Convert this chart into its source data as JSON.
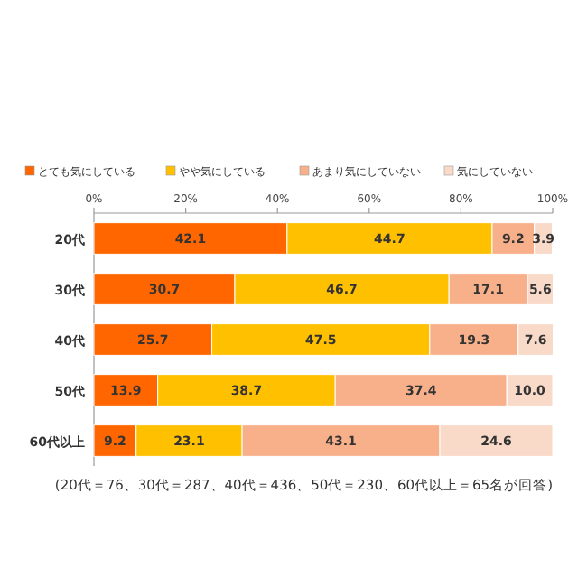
{
  "chart_data": {
    "type": "bar",
    "orientation": "horizontal",
    "stacked": true,
    "legend": "top",
    "grid": false,
    "categories": [
      "20代",
      "30代",
      "40代",
      "50代",
      "60代以上"
    ],
    "series": [
      {
        "name": "とても気にしている",
        "color": "#ff6600",
        "values": [
          42.1,
          30.7,
          25.7,
          13.9,
          9.2
        ],
        "value_labels": [
          "42.1",
          "30.7",
          "25.7",
          "13.9",
          "9.2"
        ]
      },
      {
        "name": "やや気にしている",
        "color": "#ffc000",
        "values": [
          44.7,
          46.7,
          47.5,
          38.7,
          23.1
        ],
        "value_labels": [
          "44.7",
          "46.7",
          "47.5",
          "38.7",
          "23.1"
        ]
      },
      {
        "name": "あまり気にしていない",
        "color": "#f8b08a",
        "values": [
          9.2,
          17.1,
          19.3,
          37.4,
          43.1
        ],
        "value_labels": [
          "9.2",
          "17.1",
          "19.3",
          "37.4",
          "43.1"
        ]
      },
      {
        "name": "気にしていない",
        "color": "#f9d9c8",
        "values": [
          3.9,
          5.6,
          7.6,
          10.0,
          24.6
        ],
        "value_labels": [
          "3.9",
          "5.6",
          "7.6",
          "10.0",
          "24.6"
        ]
      }
    ],
    "xlim": [
      0,
      100
    ],
    "xticks": [
      {
        "value": 0,
        "label": "0%"
      },
      {
        "value": 20,
        "label": "20%"
      },
      {
        "value": 40,
        "label": "40%"
      },
      {
        "value": 60,
        "label": "60%"
      },
      {
        "value": 80,
        "label": "80%"
      },
      {
        "value": 100,
        "label": "100%"
      }
    ],
    "annotations": [
      "(20代＝76、30代＝287、40代＝436、50代＝230、60代以上＝65名が回答)"
    ]
  }
}
